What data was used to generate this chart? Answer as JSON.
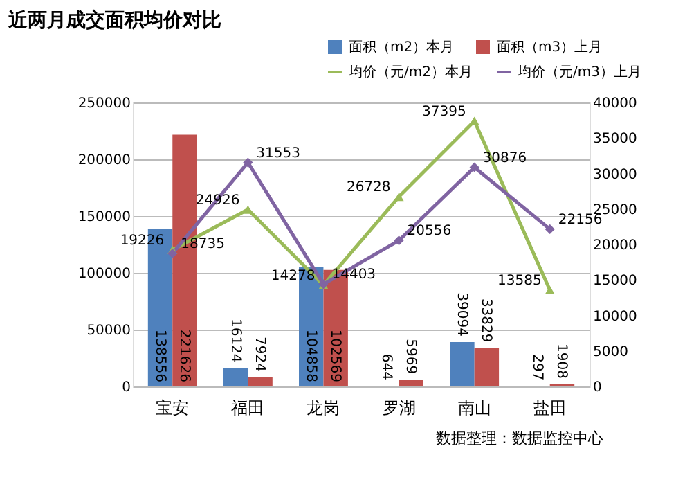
{
  "chart_data": {
    "type": "bar",
    "title": "近两月成交面积均价对比",
    "categories": [
      "宝安",
      "福田",
      "龙岗",
      "罗湖",
      "南山",
      "盐田"
    ],
    "series": [
      {
        "name": "面积（m2）本月",
        "color": "#4f81bd",
        "values": [
          138556,
          16124,
          104858,
          644,
          39094,
          297
        ]
      },
      {
        "name": "面积（m3）上月",
        "color": "#c0504d",
        "values": [
          221626,
          7924,
          102569,
          5969,
          33829,
          1908
        ]
      },
      {
        "name": "均价（元/m2）本月",
        "type": "line",
        "axis": "y2",
        "marker": "triangle",
        "color": "#9bbb59",
        "values": [
          19226,
          24926,
          14278,
          26728,
          37395,
          13585
        ]
      },
      {
        "name": "均价（元/m3）上月",
        "type": "line",
        "axis": "y2",
        "marker": "diamond",
        "color": "#8064a2",
        "values": [
          18735,
          31553,
          14403,
          20556,
          30876,
          22156
        ]
      }
    ],
    "ylim": [
      0,
      250000
    ],
    "yticks": [
      0,
      50000,
      100000,
      150000,
      200000,
      250000
    ],
    "y2lim": [
      0,
      40000
    ],
    "y2ticks": [
      0,
      5000,
      10000,
      15000,
      20000,
      25000,
      30000,
      35000,
      40000
    ],
    "grid": "y",
    "legend": "top right",
    "line_style": "solid",
    "data_labels": true,
    "annotations": [
      "数据整理：数据监控中心"
    ]
  }
}
